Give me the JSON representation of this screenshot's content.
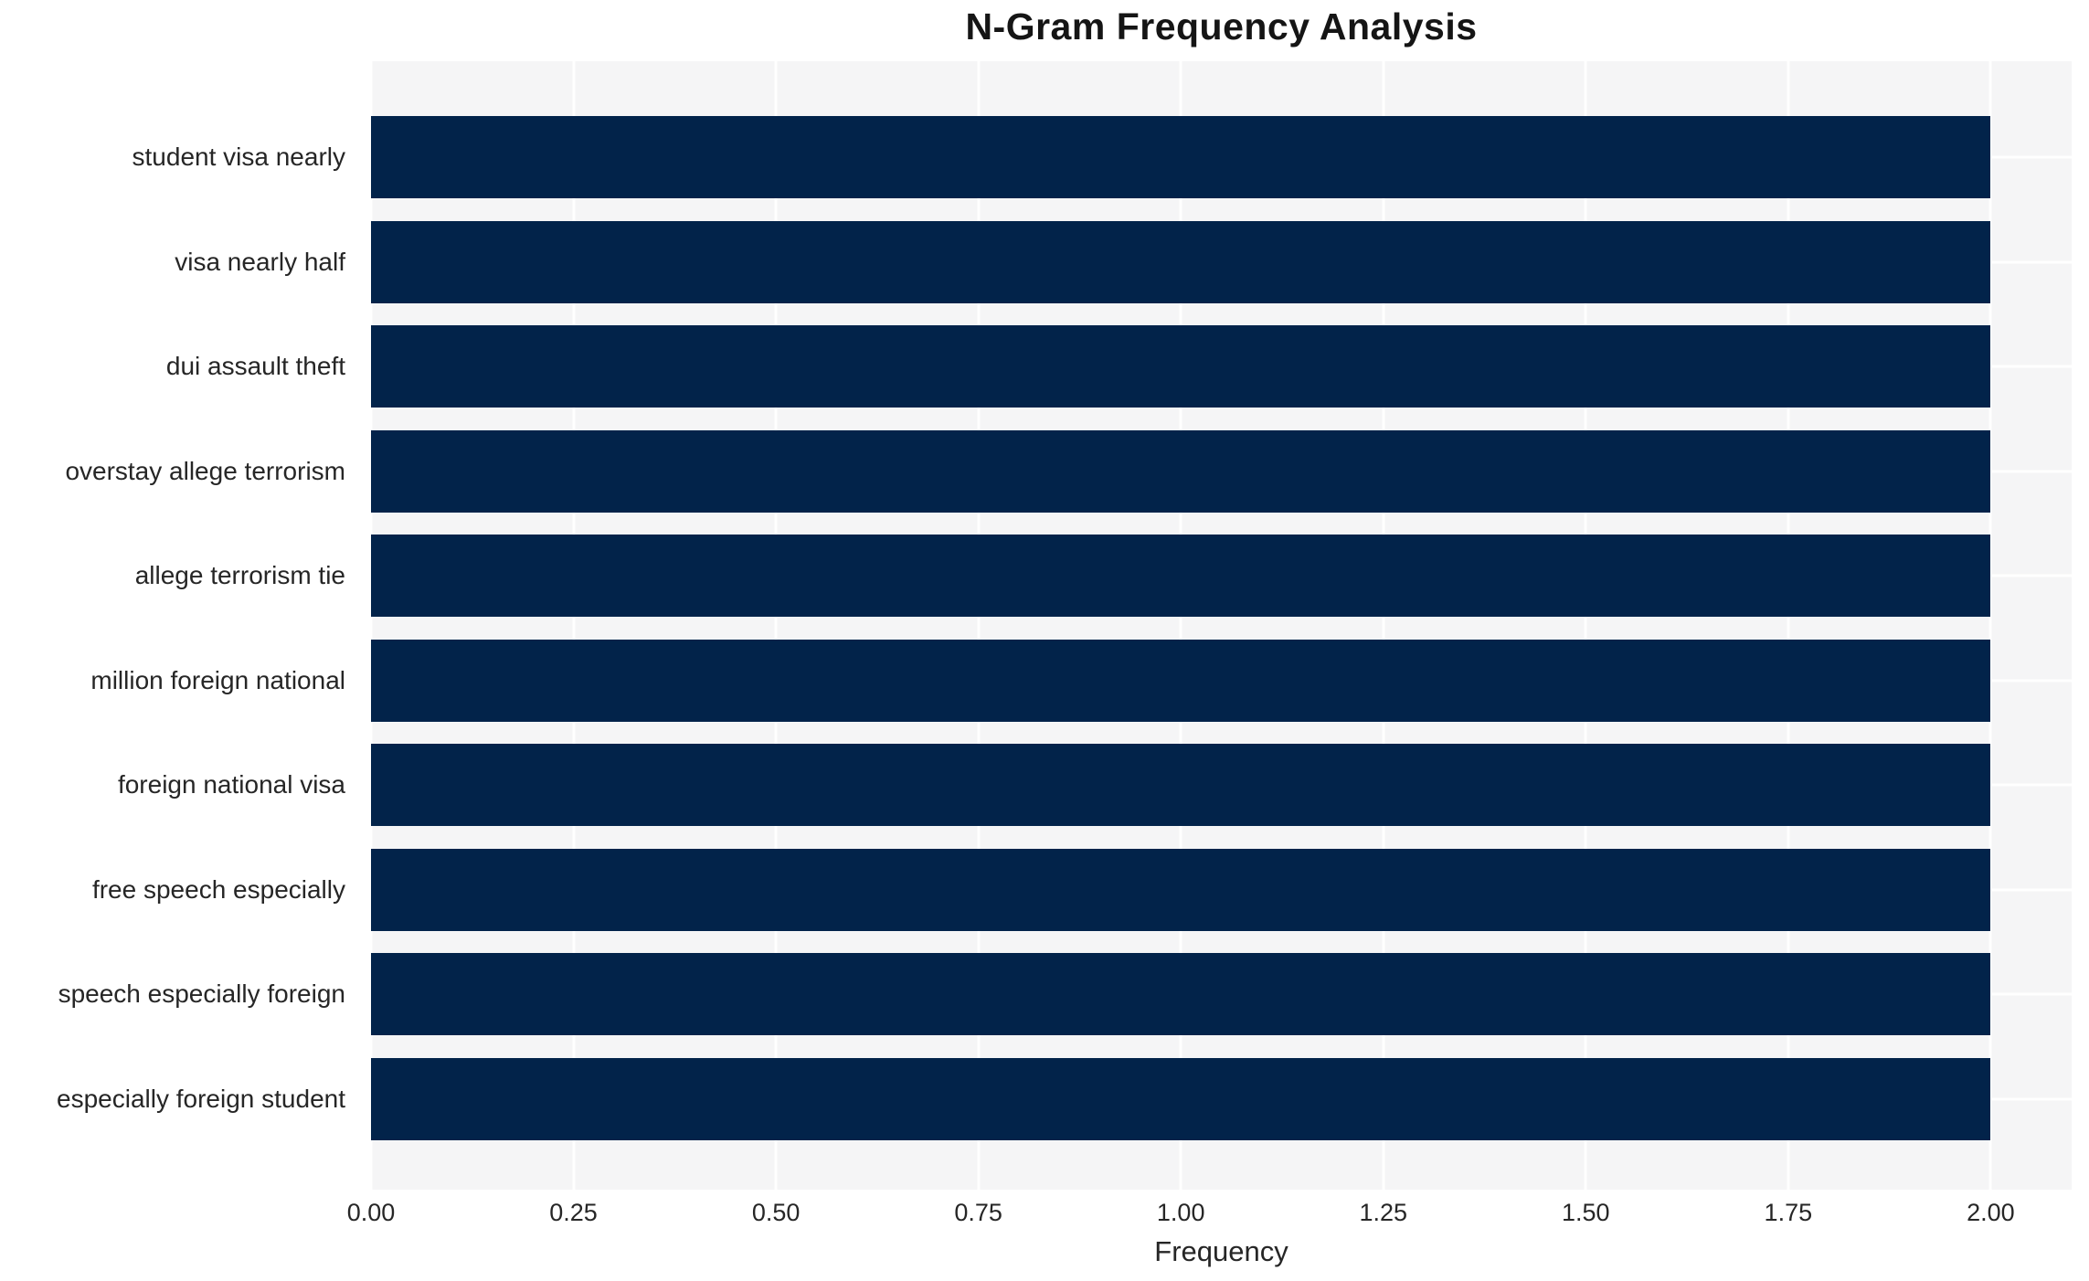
{
  "title": "N-Gram Frequency Analysis",
  "chart_data": {
    "type": "bar",
    "orientation": "horizontal",
    "title": "N-Gram Frequency Analysis",
    "xlabel": "Frequency",
    "ylabel": "",
    "categories": [
      "student visa nearly",
      "visa nearly half",
      "dui assault theft",
      "overstay allege terrorism",
      "allege terrorism tie",
      "million foreign national",
      "foreign national visa",
      "free speech especially",
      "speech especially foreign",
      "especially foreign student"
    ],
    "values": [
      2.0,
      2.0,
      2.0,
      2.0,
      2.0,
      2.0,
      2.0,
      2.0,
      2.0,
      2.0
    ],
    "xlim": [
      0,
      2.1
    ],
    "x_ticks": [
      0.0,
      0.25,
      0.5,
      0.75,
      1.0,
      1.25,
      1.5,
      1.75,
      2.0
    ],
    "x_tick_labels": [
      "0.00",
      "0.25",
      "0.50",
      "0.75",
      "1.00",
      "1.25",
      "1.50",
      "1.75",
      "2.00"
    ],
    "grid": true,
    "legend": false,
    "colors": {
      "bar": "#02234a",
      "plot_background": "#f5f5f6",
      "gridline": "#ffffff",
      "text": "#262626",
      "title_text": "#151515",
      "page_background": "#ffffff"
    }
  }
}
